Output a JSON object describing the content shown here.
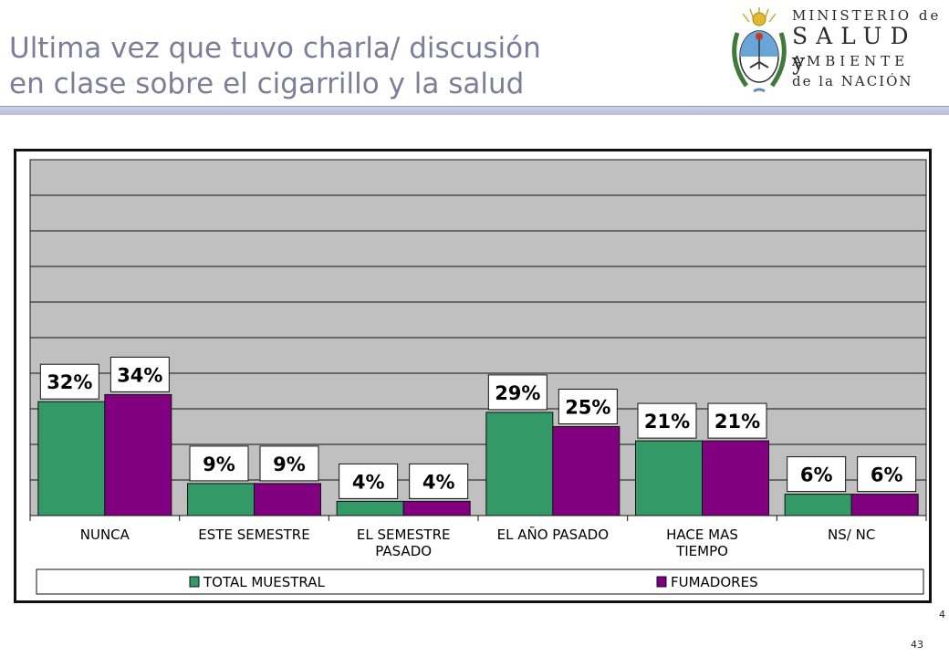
{
  "slide": {
    "title_line1": "Ultima vez que tuvo charla/ discusión",
    "title_line2": "en clase sobre el cigarrillo y la salud",
    "page_side_number": "4",
    "page_number": "43"
  },
  "logo": {
    "line1": "MINISTERIO de",
    "line2": "SALUD y",
    "line3": "AMBIENTE",
    "line4": "de la NACIÓN"
  },
  "colors": {
    "title": "#7d7d9a",
    "plot_background": "#c0c0c0",
    "series_total": "#339966",
    "series_fumadores": "#800080"
  },
  "chart_data": {
    "type": "bar",
    "title": "",
    "xlabel": "",
    "ylabel": "",
    "ylim": [
      0,
      100
    ],
    "grid": true,
    "legend_position": "bottom",
    "categories": [
      [
        "NUNCA"
      ],
      [
        "ESTE SEMESTRE"
      ],
      [
        "EL SEMESTRE",
        "PASADO"
      ],
      [
        "EL AÑO PASADO"
      ],
      [
        "HACE MAS",
        "TIEMPO"
      ],
      [
        "NS/ NC"
      ]
    ],
    "series": [
      {
        "name": "TOTAL MUESTRAL",
        "color": "#339966",
        "values": [
          32,
          9,
          4,
          29,
          21,
          6
        ],
        "labels": [
          "32%",
          "9%",
          "4%",
          "29%",
          "21%",
          "6%"
        ]
      },
      {
        "name": "FUMADORES",
        "color": "#800080",
        "values": [
          34,
          9,
          4,
          25,
          21,
          6
        ],
        "labels": [
          "34%",
          "9%",
          "4%",
          "25%",
          "21%",
          "6%"
        ]
      }
    ]
  }
}
